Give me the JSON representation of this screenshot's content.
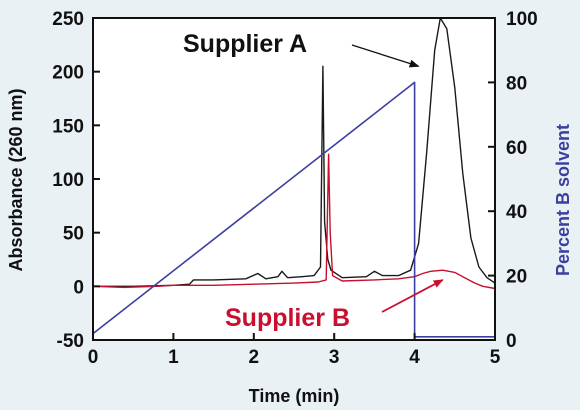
{
  "chart_data": {
    "type": "line",
    "xlabel": "Time (min)",
    "ylabel_left": "Absorbance (260 nm)",
    "ylabel_right": "Percent B solvent",
    "xlim": [
      0,
      5
    ],
    "ylim_left": [
      -50,
      250
    ],
    "ylim_right": [
      0,
      100
    ],
    "xticks": [
      "0",
      "1",
      "2",
      "3",
      "4",
      "5"
    ],
    "yticks_left": [
      "-50",
      "0",
      "50",
      "100",
      "150",
      "200",
      "250"
    ],
    "yticks_right": [
      "0",
      "20",
      "40",
      "60",
      "80",
      "100"
    ],
    "grid": false,
    "annotations": [
      {
        "text": "Supplier A",
        "series": "Supplier A",
        "points_to": {
          "x": 4.05,
          "y": 205
        }
      },
      {
        "text": "Supplier B",
        "series": "Supplier B",
        "points_to": {
          "x": 4.35,
          "y": 6
        }
      }
    ],
    "series": [
      {
        "name": "Supplier A",
        "axis": "left",
        "color": "#1a1a1a",
        "points": [
          [
            0,
            0
          ],
          [
            0.5,
            0
          ],
          [
            1.0,
            1
          ],
          [
            1.2,
            2
          ],
          [
            1.25,
            6
          ],
          [
            1.5,
            6
          ],
          [
            1.9,
            7
          ],
          [
            2.05,
            12
          ],
          [
            2.15,
            7
          ],
          [
            2.3,
            9
          ],
          [
            2.35,
            14
          ],
          [
            2.42,
            8
          ],
          [
            2.6,
            9
          ],
          [
            2.75,
            10
          ],
          [
            2.83,
            18
          ],
          [
            2.86,
            205
          ],
          [
            2.88,
            60
          ],
          [
            2.92,
            25
          ],
          [
            2.96,
            15
          ],
          [
            3.1,
            8
          ],
          [
            3.4,
            9
          ],
          [
            3.5,
            14
          ],
          [
            3.6,
            10
          ],
          [
            3.8,
            10
          ],
          [
            3.95,
            15
          ],
          [
            4.05,
            40
          ],
          [
            4.15,
            125
          ],
          [
            4.25,
            220
          ],
          [
            4.32,
            250
          ],
          [
            4.4,
            240
          ],
          [
            4.5,
            185
          ],
          [
            4.6,
            105
          ],
          [
            4.7,
            45
          ],
          [
            4.8,
            18
          ],
          [
            4.9,
            8
          ],
          [
            5.0,
            3
          ]
        ]
      },
      {
        "name": "Supplier B",
        "axis": "left",
        "color": "#c8102e",
        "points": [
          [
            0,
            0
          ],
          [
            0.4,
            -1
          ],
          [
            0.8,
            0
          ],
          [
            1.0,
            1
          ],
          [
            1.5,
            1
          ],
          [
            2.0,
            2
          ],
          [
            2.5,
            3
          ],
          [
            2.8,
            4
          ],
          [
            2.9,
            6
          ],
          [
            2.93,
            123
          ],
          [
            2.95,
            50
          ],
          [
            2.98,
            10
          ],
          [
            3.1,
            5
          ],
          [
            3.5,
            6
          ],
          [
            3.8,
            7
          ],
          [
            4.0,
            9
          ],
          [
            4.1,
            12
          ],
          [
            4.2,
            14
          ],
          [
            4.35,
            15
          ],
          [
            4.5,
            13
          ],
          [
            4.6,
            9
          ],
          [
            4.75,
            3
          ],
          [
            4.85,
            0
          ],
          [
            5.0,
            -2
          ]
        ]
      },
      {
        "name": "Percent B solvent",
        "axis": "right",
        "color": "#3b3fa0",
        "points": [
          [
            0,
            2
          ],
          [
            4.0,
            80
          ],
          [
            4.0,
            1
          ],
          [
            5.0,
            1
          ]
        ]
      }
    ]
  }
}
